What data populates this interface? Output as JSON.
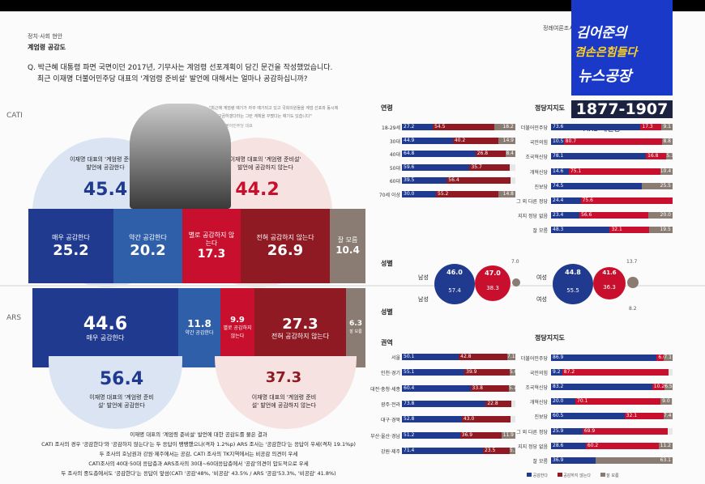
{
  "header": {
    "section": "정치·사회 현안",
    "topic": "계엄령 공감도",
    "question_line1": "Q. 박근혜 대통령 파면 국면이던 2017년, 기무사는 계엄령 선포계획이 담긴 문건을 작성했었습니다.",
    "question_line2": "최근 이재명 더불어민주당 대표의 '계엄령 준비설' 발언에 대해서는 얼마나 공감하십니까?",
    "right_note": "정례여론조사"
  },
  "logo": {
    "line1": "김어준의",
    "line2": "겸손은힘들다",
    "line3": "뉴스공장",
    "phone": "1877-1907",
    "sub": "ARS 패널용"
  },
  "quote": {
    "line1": "\"최근에 계엄령 얘기가 자꾸 얘기되고 있고 국회의원들을 계엄 선포와 동시에",
    "line2": "체포·구금하겠다라는 그런 계획을 꾸몄다는 얘기도 있습니다\"",
    "line3": "이재명 더불어민주당 대표"
  },
  "colors": {
    "blue_dark": "#203a8f",
    "blue_mid": "#2f5fa8",
    "red": "#c8102e",
    "red_dark": "#8f1a24",
    "gray": "#8a7c72",
    "circle_blue": "#dbe4f3",
    "circle_red": "#f6e2e0"
  },
  "cati": {
    "tag": "CATI",
    "agree_total_label": "이재명 대표의 '계엄령 준비설' 발언에 공감한다",
    "agree_total": "45.4",
    "disagree_total_label": "이재명 대표의 '계엄령 준비설' 발언에 공감하지 않는다",
    "disagree_total": "44.2",
    "boxes": [
      {
        "label": "매우 공감한다",
        "value": "25.2"
      },
      {
        "label": "약간 공감한다",
        "value": "20.2"
      },
      {
        "label": "별로 공감하지 않는다",
        "value": "17.3"
      },
      {
        "label": "전혀 공감하지 않는다",
        "value": "26.9"
      },
      {
        "label": "잘 모름",
        "value": "10.4"
      }
    ]
  },
  "ars": {
    "tag": "ARS",
    "boxes": [
      {
        "label": "매우 공감한다",
        "value": "44.6"
      },
      {
        "label": "약간 공감한다",
        "value": "11.8"
      },
      {
        "label": "별로 공감하지 않는다",
        "value": "9.9"
      },
      {
        "label": "전혀 공감하지 않는다",
        "value": "27.3"
      },
      {
        "label": "잘 모름",
        "value": "6.3"
      }
    ],
    "agree_total": "56.4",
    "agree_total_label": "이재명 대표의 '계엄령 준비설' 발언에 공감한다",
    "disagree_total": "37.3",
    "disagree_total_label": "이재명 대표의 '계엄령 준비설' 발언에 공감하지 않는다"
  },
  "summary": [
    "이재명 대표의 '계엄령 준비설' 발언에 대한 공감도를 물은 결과",
    "CATI 조사의 경우 '공감한다'와 '공감하지 않는다'는 두 응답이 팽팽했으나(격차 1.2%p) ARS 조사는 '공감한다'는 응답이 우세(격차 19.1%p)",
    "두 조사의 호남권과 강원·제주에서는 공감, CATI 조사의 TK지역에서는 비공감 의견이 우세",
    "CATI조사의 40대·50대 응답층과 ARS조사의 30대~60대응답층에서 '공감'의견이 압도적으로 우세",
    "두 조사의 중도층에서도 '공감한다'는 응답이 앞섬(CATI '공감'48%, '비공감' 43.5% / ARS '공감'53.3%, '비공감' 41.8%)"
  ],
  "gender": {
    "title_top": "성별",
    "title_bottom": "성별",
    "male": "남성",
    "female": "여성",
    "cati_male": [
      "46.0",
      "47.0",
      "7.0"
    ],
    "ars_male": [
      "57.4",
      "38.3",
      ""
    ],
    "cati_female": [
      "44.8",
      "41.6",
      "13.7"
    ],
    "ars_female": [
      "55.5",
      "36.3",
      "8.2"
    ]
  },
  "chart_data": [
    {
      "type": "bar",
      "title": "연령",
      "categories": [
        "18-29세",
        "30대",
        "40대",
        "50대",
        "60대",
        "70세 이상"
      ],
      "series": [
        {
          "values": [
            27.2,
            44.9,
            64.8,
            59.6,
            39.5,
            30.0
          ]
        },
        {
          "values": [
            54.5,
            40.2,
            26.8,
            35.7,
            56.4,
            55.2
          ]
        },
        {
          "values": [
            18.2,
            14.9,
            8.4,
            0,
            0,
            14.8
          ]
        }
      ]
    },
    {
      "type": "bar",
      "title": "정당지지도",
      "categories": [
        "더불어민주당",
        "국민의힘",
        "조국혁신당",
        "개혁신당",
        "진보당",
        "그 외 다른 정당",
        "지지 정당 없음",
        "잘 모름"
      ],
      "series": [
        {
          "values": [
            73.6,
            10.5,
            78.1,
            14.6,
            74.5,
            24.4,
            23.4,
            48.3
          ]
        },
        {
          "values": [
            17.3,
            80.7,
            16.8,
            75.1,
            0,
            75.6,
            56.6,
            32.1
          ]
        },
        {
          "values": [
            9.1,
            8.8,
            5.1,
            10.4,
            25.5,
            0,
            20.0,
            19.5
          ]
        }
      ]
    },
    {
      "type": "bar",
      "title": "권역",
      "categories": [
        "서울",
        "인천·경기",
        "대전·충청·세종",
        "광주·전라",
        "대구·경북",
        "부산·울산·경남",
        "강원·제주"
      ],
      "series": [
        {
          "values": [
            50.1,
            55.1,
            60.4,
            73.8,
            52.8,
            51.2,
            71.4
          ]
        },
        {
          "values": [
            42.8,
            39.9,
            33.8,
            22.8,
            43.0,
            36.9,
            23.5
          ]
        },
        {
          "values": [
            7.1,
            5.0,
            5.7,
            0,
            0,
            11.9,
            5.1
          ]
        }
      ]
    },
    {
      "type": "bar",
      "title": "정당지지도",
      "categories": [
        "더불어민주당",
        "국민의힘",
        "조국혁신당",
        "개혁신당",
        "진보당",
        "그 외 다른 정당",
        "지지 정당 없음",
        "잘 모름"
      ],
      "series": [
        {
          "values": [
            86.9,
            9.2,
            83.2,
            20.0,
            60.5,
            25.9,
            28.6,
            36.9
          ]
        },
        {
          "values": [
            6.0,
            87.2,
            10.2,
            70.1,
            32.1,
            69.9,
            60.2,
            0
          ]
        },
        {
          "values": [
            7.1,
            0,
            6.5,
            9.0,
            7.4,
            0,
            11.2,
            63.1
          ]
        }
      ]
    }
  ],
  "legend": [
    "공감한다",
    "공감하지 않는다",
    "잘 모름"
  ]
}
